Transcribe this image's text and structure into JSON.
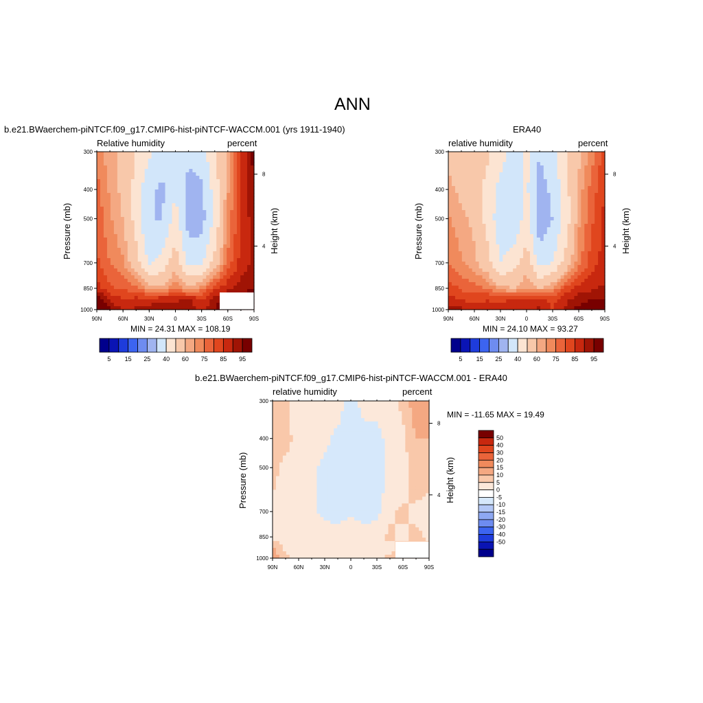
{
  "figure": {
    "title": "ANN"
  },
  "colors": {
    "rh_scale": [
      "#00008c",
      "#0a14b4",
      "#1e3cdc",
      "#3c64f0",
      "#6e8cf0",
      "#a0b4f0",
      "#d2e6fa",
      "#fce4d2",
      "#f8c8aa",
      "#f4a882",
      "#f08a5c",
      "#ea643a",
      "#e0461e",
      "#c8280f",
      "#a01405",
      "#780000"
    ],
    "diff_scale": [
      "#00008c",
      "#0a14b4",
      "#1e3cdc",
      "#3c64f0",
      "#6e8cf0",
      "#a0b4f0",
      "#d2e6fa",
      "#ffffff",
      "#fce4d2",
      "#f8c8aa",
      "#f4a882",
      "#f08a5c",
      "#ea643a",
      "#e0461e",
      "#c8280f",
      "#780000"
    ]
  },
  "chart_data": [
    {
      "type": "heatmap",
      "title": "b.e21.BWaerchem-piNTCF.f09_g17.CMIP6-hist-piNTCF-WACCM.001 (yrs 1911-1940)",
      "left_label": "Relative humidity",
      "right_label": "percent",
      "xlabel": "",
      "ylabel": "Pressure (mb)",
      "ylabel_right": "Height (km)",
      "x_ticks": [
        "90N",
        "60N",
        "30N",
        "0",
        "30S",
        "60S",
        "90S"
      ],
      "y_ticks": [
        "300",
        "400",
        "500",
        "700",
        "850",
        "1000"
      ],
      "y_ticks_right": [
        "8",
        "4"
      ],
      "ylim": [
        1000,
        300
      ],
      "xlim": [
        90,
        -90
      ],
      "stats": "MIN =  24.31  MAX = 108.19",
      "min": 24.31,
      "max": 108.19,
      "levels": [
        "5",
        "15",
        "25",
        "40",
        "60",
        "75",
        "85",
        "95"
      ],
      "grid": {
        "lat": [
          90,
          75,
          60,
          45,
          30,
          15,
          0,
          -15,
          -30,
          -45,
          -60,
          -75,
          -90
        ],
        "pressure": [
          300,
          400,
          500,
          700,
          850,
          925,
          1000
        ],
        "values": [
          [
            68,
            62,
            58,
            50,
            42,
            34,
            38,
            32,
            36,
            48,
            62,
            80,
            92
          ],
          [
            72,
            64,
            58,
            46,
            32,
            28,
            40,
            26,
            28,
            44,
            64,
            82,
            90
          ],
          [
            74,
            66,
            60,
            46,
            30,
            30,
            44,
            26,
            26,
            42,
            66,
            80,
            88
          ],
          [
            76,
            70,
            66,
            54,
            38,
            44,
            56,
            36,
            38,
            54,
            72,
            82,
            86
          ],
          [
            82,
            76,
            74,
            72,
            64,
            62,
            70,
            62,
            68,
            78,
            84,
            88,
            90
          ],
          [
            94,
            84,
            80,
            82,
            82,
            84,
            84,
            86,
            80,
            88,
            92,
            94,
            96
          ],
          [
            104,
            90,
            84,
            86,
            88,
            88,
            86,
            88,
            82,
            90,
            96,
            100,
            100
          ]
        ]
      }
    },
    {
      "type": "heatmap",
      "title": "ERA40",
      "left_label": "relative humidity",
      "right_label": "percent",
      "xlabel": "",
      "ylabel": "Pressure (mb)",
      "ylabel_right": "Height (km)",
      "x_ticks": [
        "90N",
        "60N",
        "30N",
        "0",
        "30S",
        "60S",
        "90S"
      ],
      "y_ticks": [
        "300",
        "400",
        "500",
        "700",
        "850",
        "1000"
      ],
      "y_ticks_right": [
        "8",
        "4"
      ],
      "ylim": [
        1000,
        300
      ],
      "xlim": [
        90,
        -90
      ],
      "stats": "MIN =  24.10  MAX =  93.27",
      "min": 24.1,
      "max": 93.27,
      "levels": [
        "5",
        "15",
        "25",
        "40",
        "60",
        "75",
        "85",
        "95"
      ],
      "grid": {
        "lat": [
          90,
          75,
          60,
          45,
          30,
          15,
          0,
          -15,
          -30,
          -45,
          -60,
          -75,
          -90
        ],
        "pressure": [
          300,
          400,
          500,
          700,
          850,
          925,
          1000
        ],
        "values": [
          [
            58,
            56,
            56,
            52,
            44,
            36,
            42,
            30,
            38,
            48,
            58,
            68,
            78
          ],
          [
            62,
            58,
            56,
            46,
            36,
            32,
            42,
            26,
            32,
            46,
            62,
            72,
            80
          ],
          [
            66,
            62,
            58,
            46,
            34,
            32,
            44,
            24,
            30,
            44,
            64,
            74,
            82
          ],
          [
            70,
            66,
            62,
            54,
            40,
            46,
            56,
            36,
            40,
            54,
            68,
            78,
            82
          ],
          [
            78,
            74,
            72,
            70,
            62,
            60,
            66,
            60,
            66,
            76,
            82,
            84,
            86
          ],
          [
            82,
            80,
            78,
            80,
            78,
            80,
            80,
            82,
            78,
            84,
            88,
            90,
            90
          ],
          [
            88,
            86,
            82,
            82,
            84,
            86,
            84,
            86,
            80,
            86,
            92,
            92,
            92
          ]
        ]
      }
    },
    {
      "type": "heatmap",
      "title": "b.e21.BWaerchem-piNTCF.f09_g17.CMIP6-hist-piNTCF-WACCM.001 - ERA40",
      "left_label": "relative humidity",
      "right_label": "percent",
      "xlabel": "",
      "ylabel": "Pressure (mb)",
      "ylabel_right": "Height (km)",
      "x_ticks": [
        "90N",
        "60N",
        "30N",
        "0",
        "30S",
        "60S",
        "90S"
      ],
      "y_ticks": [
        "300",
        "400",
        "500",
        "700",
        "850",
        "1000"
      ],
      "y_ticks_right": [
        "8",
        "4"
      ],
      "ylim": [
        1000,
        300
      ],
      "xlim": [
        90,
        -90
      ],
      "stats": "MIN = -11.65  MAX =  19.49",
      "min": -11.65,
      "max": 19.49,
      "levels": [
        "50",
        "40",
        "30",
        "20",
        "15",
        "10",
        "5",
        "0",
        "-5",
        "-10",
        "-15",
        "-20",
        "-30",
        "-40",
        "-50"
      ],
      "grid": {
        "lat": [
          90,
          75,
          60,
          45,
          30,
          15,
          0,
          -15,
          -30,
          -45,
          -60,
          -75,
          -90
        ],
        "pressure": [
          300,
          400,
          500,
          700,
          850,
          925,
          1000
        ],
        "values": [
          [
            10,
            6,
            2,
            2,
            2,
            4,
            -6,
            4,
            2,
            4,
            6,
            14,
            14
          ],
          [
            8,
            6,
            4,
            2,
            2,
            -2,
            -2,
            -4,
            -2,
            2,
            4,
            10,
            10
          ],
          [
            6,
            4,
            4,
            2,
            -2,
            -4,
            -2,
            -2,
            -4,
            2,
            2,
            8,
            6
          ],
          [
            4,
            4,
            2,
            2,
            -2,
            -2,
            -1,
            -2,
            -2,
            4,
            6,
            4,
            4
          ],
          [
            4,
            2,
            2,
            2,
            4,
            2,
            4,
            2,
            4,
            6,
            4,
            6,
            4
          ],
          [
            10,
            4,
            4,
            2,
            4,
            4,
            4,
            4,
            2,
            4,
            6,
            6,
            6
          ],
          [
            16,
            6,
            4,
            4,
            4,
            4,
            4,
            4,
            4,
            6,
            6,
            8,
            8
          ]
        ]
      }
    }
  ]
}
